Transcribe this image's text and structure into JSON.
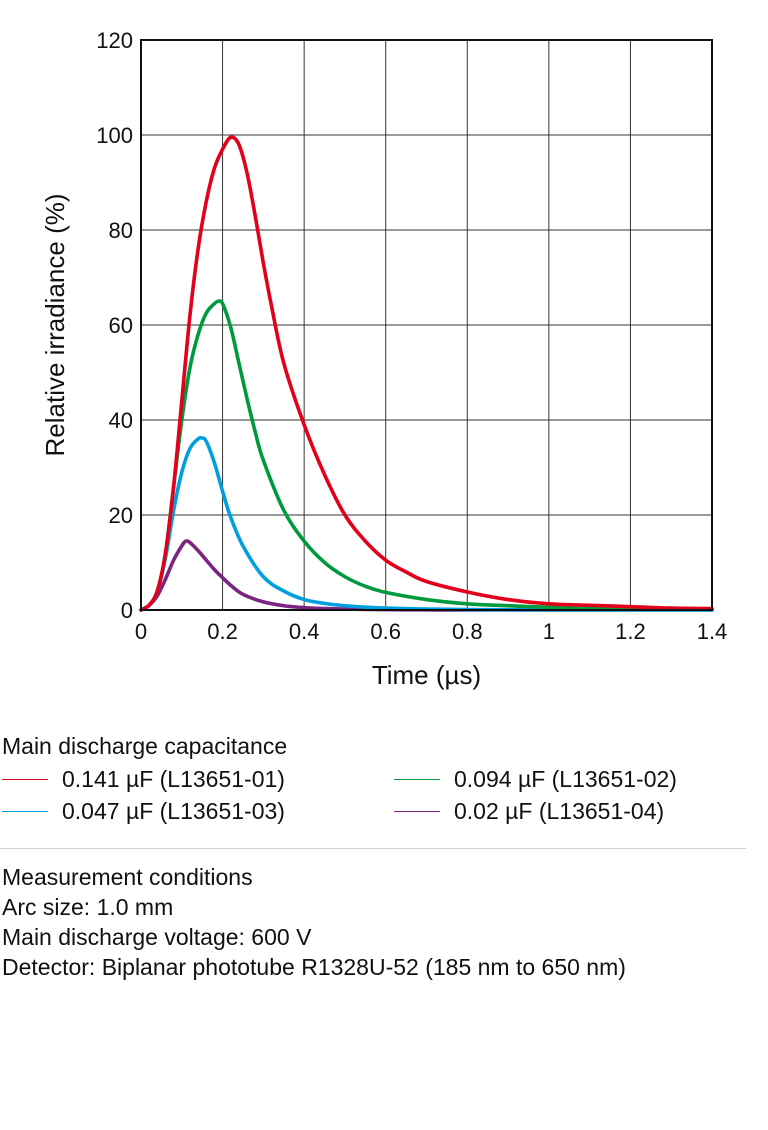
{
  "chart_data": {
    "type": "line",
    "xlabel": "Time (µs)",
    "ylabel": "Relative irradiance (%)",
    "xlim": [
      0,
      1.4
    ],
    "ylim": [
      0,
      120
    ],
    "xticks": [
      0,
      0.2,
      0.4,
      0.6,
      0.8,
      1,
      1.2,
      1.4
    ],
    "xtick_labels": [
      "0",
      "0.2",
      "0.4",
      "0.6",
      "0.8",
      "1",
      "1.2",
      "1.4"
    ],
    "yticks": [
      0,
      20,
      40,
      60,
      80,
      100,
      120
    ],
    "ytick_labels": [
      "0",
      "20",
      "40",
      "60",
      "80",
      "100",
      "120"
    ],
    "grid": true,
    "series": [
      {
        "name": "0.141 µF (L13651-01)",
        "color": "#e2001a",
        "x": [
          0,
          0.02,
          0.04,
          0.06,
          0.08,
          0.1,
          0.12,
          0.14,
          0.16,
          0.18,
          0.2,
          0.22,
          0.24,
          0.26,
          0.28,
          0.3,
          0.32,
          0.35,
          0.4,
          0.45,
          0.5,
          0.55,
          0.6,
          0.65,
          0.7,
          0.8,
          0.9,
          1.0,
          1.1,
          1.2,
          1.3,
          1.4
        ],
        "y": [
          0,
          1,
          4,
          12,
          26,
          44,
          62,
          76,
          86,
          93,
          97,
          99.5,
          98,
          92,
          83,
          73,
          64,
          52,
          39,
          28.5,
          20,
          14.5,
          10.5,
          8,
          6,
          3.8,
          2.2,
          1.3,
          1,
          0.7,
          0.4,
          0.3
        ]
      },
      {
        "name": "0.094 µF (L13651-02)",
        "color": "#009a3e",
        "x": [
          0,
          0.02,
          0.04,
          0.06,
          0.08,
          0.1,
          0.12,
          0.14,
          0.16,
          0.18,
          0.19,
          0.2,
          0.22,
          0.24,
          0.26,
          0.28,
          0.3,
          0.35,
          0.4,
          0.45,
          0.5,
          0.55,
          0.6,
          0.7,
          0.8,
          0.9,
          1.0,
          1.2,
          1.4
        ],
        "y": [
          0,
          1,
          4,
          12,
          26,
          40,
          51,
          58,
          62.5,
          64.5,
          65,
          64.5,
          59.5,
          52,
          44.5,
          37.5,
          31.5,
          21,
          14.5,
          10,
          7,
          5,
          3.7,
          2.2,
          1.3,
          0.9,
          0.6,
          0.3,
          0.15
        ]
      },
      {
        "name": "0.047 µF (L13651-03)",
        "color": "#00a0e0",
        "x": [
          0,
          0.02,
          0.04,
          0.06,
          0.08,
          0.1,
          0.12,
          0.14,
          0.15,
          0.16,
          0.18,
          0.2,
          0.22,
          0.25,
          0.3,
          0.35,
          0.4,
          0.45,
          0.5,
          0.55,
          0.6,
          0.7,
          0.8,
          0.9,
          1.0,
          1.2,
          1.4
        ],
        "y": [
          0,
          1,
          4,
          11,
          21,
          29,
          34,
          36,
          36.2,
          35.5,
          31,
          25,
          19.5,
          13.5,
          7,
          4,
          2.2,
          1.4,
          0.9,
          0.6,
          0.4,
          0.2,
          0.1,
          0.05,
          0,
          0,
          0
        ]
      },
      {
        "name": "0.02 µF (L13651-04)",
        "color": "#7b2481",
        "x": [
          0,
          0.02,
          0.04,
          0.06,
          0.08,
          0.1,
          0.11,
          0.12,
          0.14,
          0.16,
          0.18,
          0.2,
          0.22,
          0.25,
          0.3,
          0.35,
          0.4,
          0.45,
          0.5,
          0.6,
          0.7,
          0.8,
          1.0,
          1.4
        ],
        "y": [
          0,
          1,
          3,
          6.5,
          10.5,
          13.5,
          14.5,
          14.2,
          12.5,
          10.5,
          8.5,
          6.8,
          5.2,
          3.3,
          1.7,
          0.9,
          0.5,
          0.3,
          0.2,
          0.08,
          0.03,
          0,
          0,
          0
        ]
      }
    ]
  },
  "legend": {
    "title": "Main discharge capacitance",
    "items": [
      {
        "label": "0.141 µF (L13651-01)",
        "color": "#e2001a"
      },
      {
        "label": "0.094 µF (L13651-02)",
        "color": "#009a3e"
      },
      {
        "label": "0.047 µF (L13651-03)",
        "color": "#00a0e0"
      },
      {
        "label": "0.02 µF (L13651-04)",
        "color": "#7b2481"
      }
    ]
  },
  "conditions": {
    "title": "Measurement conditions",
    "arc_size": "Arc size: 1.0 mm",
    "voltage": "Main discharge voltage: 600 V",
    "detector": "Detector: Biplanar phototube R1328U-52 (185 nm to 650 nm)"
  }
}
